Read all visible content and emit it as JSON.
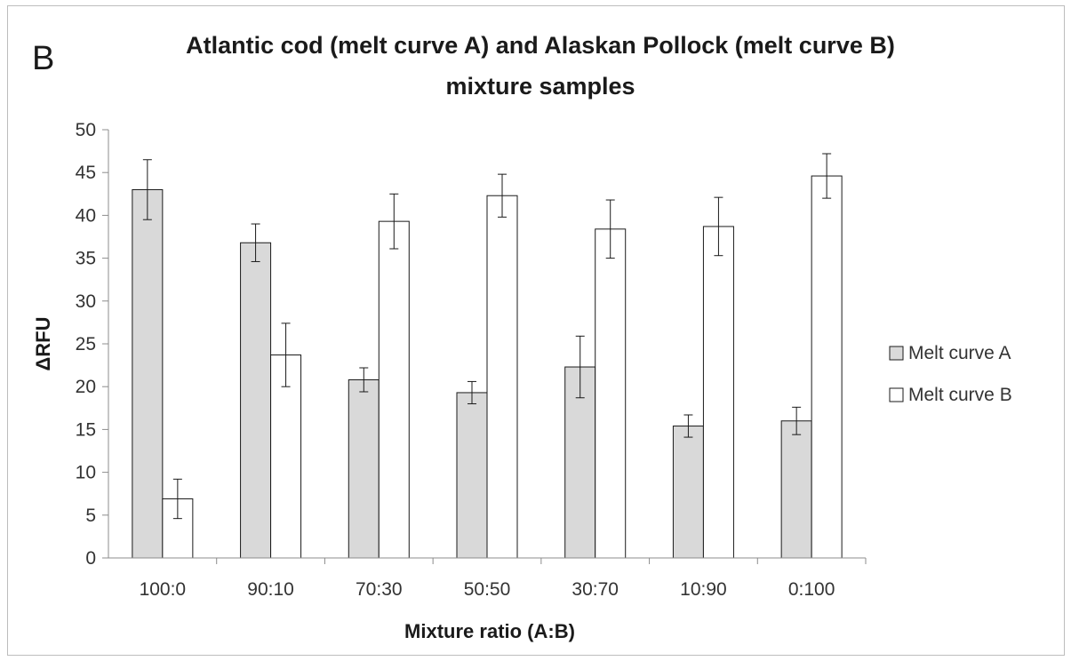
{
  "panel_label": "B",
  "chart_data": {
    "type": "bar",
    "title": "Atlantic cod (melt curve A) and Alaskan Pollock (melt curve B) mixture samples",
    "title_lines": [
      "Atlantic cod (melt curve A) and Alaskan Pollock (melt curve B)",
      "mixture samples"
    ],
    "xlabel": "Mixture ratio (A:B)",
    "ylabel": "ΔRFU",
    "ylim": [
      0,
      50
    ],
    "yticks": [
      0,
      5,
      10,
      15,
      20,
      25,
      30,
      35,
      40,
      45,
      50
    ],
    "categories": [
      "100:0",
      "90:10",
      "70:30",
      "50:50",
      "30:70",
      "10:90",
      "0:100"
    ],
    "series": [
      {
        "name": "Melt curve A",
        "color": "#d9d9d9",
        "values": [
          43.0,
          36.8,
          20.8,
          19.3,
          22.3,
          15.4,
          16.0
        ],
        "errors": [
          3.5,
          2.2,
          1.4,
          1.3,
          3.6,
          1.3,
          1.6
        ]
      },
      {
        "name": "Melt curve B",
        "color": "#ffffff",
        "values": [
          6.9,
          23.7,
          39.3,
          42.3,
          38.4,
          38.7,
          44.6
        ],
        "errors": [
          2.3,
          3.7,
          3.2,
          2.5,
          3.4,
          3.4,
          2.6
        ]
      }
    ],
    "legend": "right",
    "grid": false
  }
}
